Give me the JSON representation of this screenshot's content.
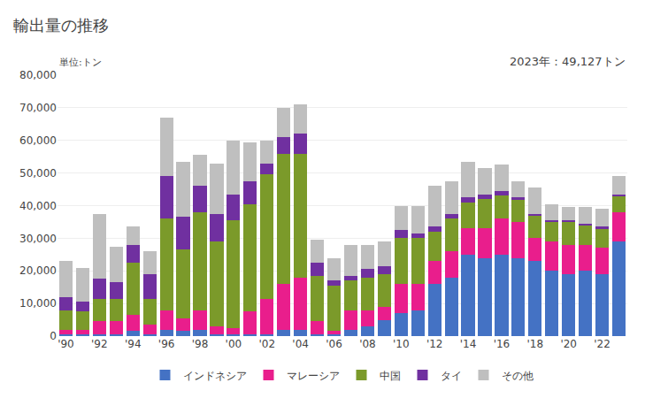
{
  "chart_data": {
    "type": "bar",
    "stacked": true,
    "title": "輸出量の推移",
    "ylabel": "単位:トン",
    "annotations": [
      "2023年：49,127トン"
    ],
    "categories": [
      "'90",
      null,
      "'92",
      null,
      "'94",
      null,
      "'96",
      null,
      "'98",
      null,
      "'00",
      null,
      "'02",
      null,
      "'04",
      null,
      "'06",
      null,
      "'08",
      null,
      "'10",
      null,
      "'12",
      null,
      "'14",
      null,
      "'16",
      null,
      "'18",
      null,
      "'20",
      null,
      "'22",
      null
    ],
    "series": [
      {
        "name": "インドネシア",
        "color": "#4472C4",
        "values": [
          500,
          500,
          500,
          500,
          1500,
          500,
          2000,
          1500,
          2000,
          500,
          500,
          500,
          500,
          2000,
          2000,
          500,
          500,
          2000,
          3000,
          5000,
          7000,
          8000,
          16000,
          18000,
          25000,
          24000,
          25000,
          24000,
          23000,
          20000,
          19000,
          20000,
          19000,
          29000
        ]
      },
      {
        "name": "マレーシア",
        "color": "#E91E8C",
        "values": [
          1500,
          1500,
          4000,
          4000,
          5000,
          3000,
          6000,
          4000,
          6000,
          2500,
          2000,
          7000,
          11000,
          14000,
          16000,
          4000,
          1000,
          6000,
          5000,
          4000,
          9000,
          8000,
          7000,
          8000,
          8000,
          9000,
          11000,
          11000,
          7000,
          9000,
          9000,
          8000,
          8000,
          9000
        ]
      },
      {
        "name": "中国",
        "color": "#7B9A2A",
        "values": [
          6000,
          5500,
          7000,
          7000,
          16000,
          8000,
          28000,
          21000,
          30000,
          26000,
          33000,
          33000,
          38000,
          40000,
          38000,
          14000,
          14000,
          9000,
          10000,
          10000,
          14000,
          14000,
          9000,
          10000,
          8000,
          9000,
          7000,
          7000,
          7000,
          6000,
          7000,
          6000,
          6000,
          5000
        ]
      },
      {
        "name": "タイ",
        "color": "#7030A0",
        "values": [
          4000,
          3000,
          6000,
          5000,
          5500,
          7500,
          13000,
          10000,
          8000,
          8500,
          8000,
          7000,
          3500,
          5000,
          6000,
          4000,
          1500,
          1500,
          2500,
          2500,
          2500,
          1500,
          1500,
          1500,
          1500,
          1500,
          1500,
          500,
          500,
          500,
          500,
          500,
          500,
          500
        ]
      },
      {
        "name": "その他",
        "color": "#BFBFBF",
        "values": [
          11000,
          10500,
          20000,
          11000,
          5500,
          7000,
          18000,
          17000,
          9500,
          15500,
          16500,
          12000,
          7000,
          9000,
          9000,
          7000,
          7000,
          9500,
          7500,
          7500,
          7500,
          8500,
          12500,
          10000,
          11000,
          8000,
          8000,
          5000,
          8000,
          5000,
          4000,
          5000,
          5500,
          5500
        ]
      }
    ],
    "ylim": [
      0,
      80000
    ],
    "yticks": [
      0,
      {
        "value": 10000,
        "label": "10,000"
      },
      {
        "value": 20000,
        "label": "20,000"
      },
      {
        "value": 30000,
        "label": "30,000"
      },
      {
        "value": 40000,
        "label": "40,000"
      },
      {
        "value": 50000,
        "label": "50,000"
      },
      {
        "value": 60000,
        "label": "60,000"
      },
      {
        "value": 70000,
        "label": "70,000"
      },
      {
        "value": 80000,
        "label": "80,000"
      }
    ],
    "grid": true,
    "legend": "bottom"
  }
}
